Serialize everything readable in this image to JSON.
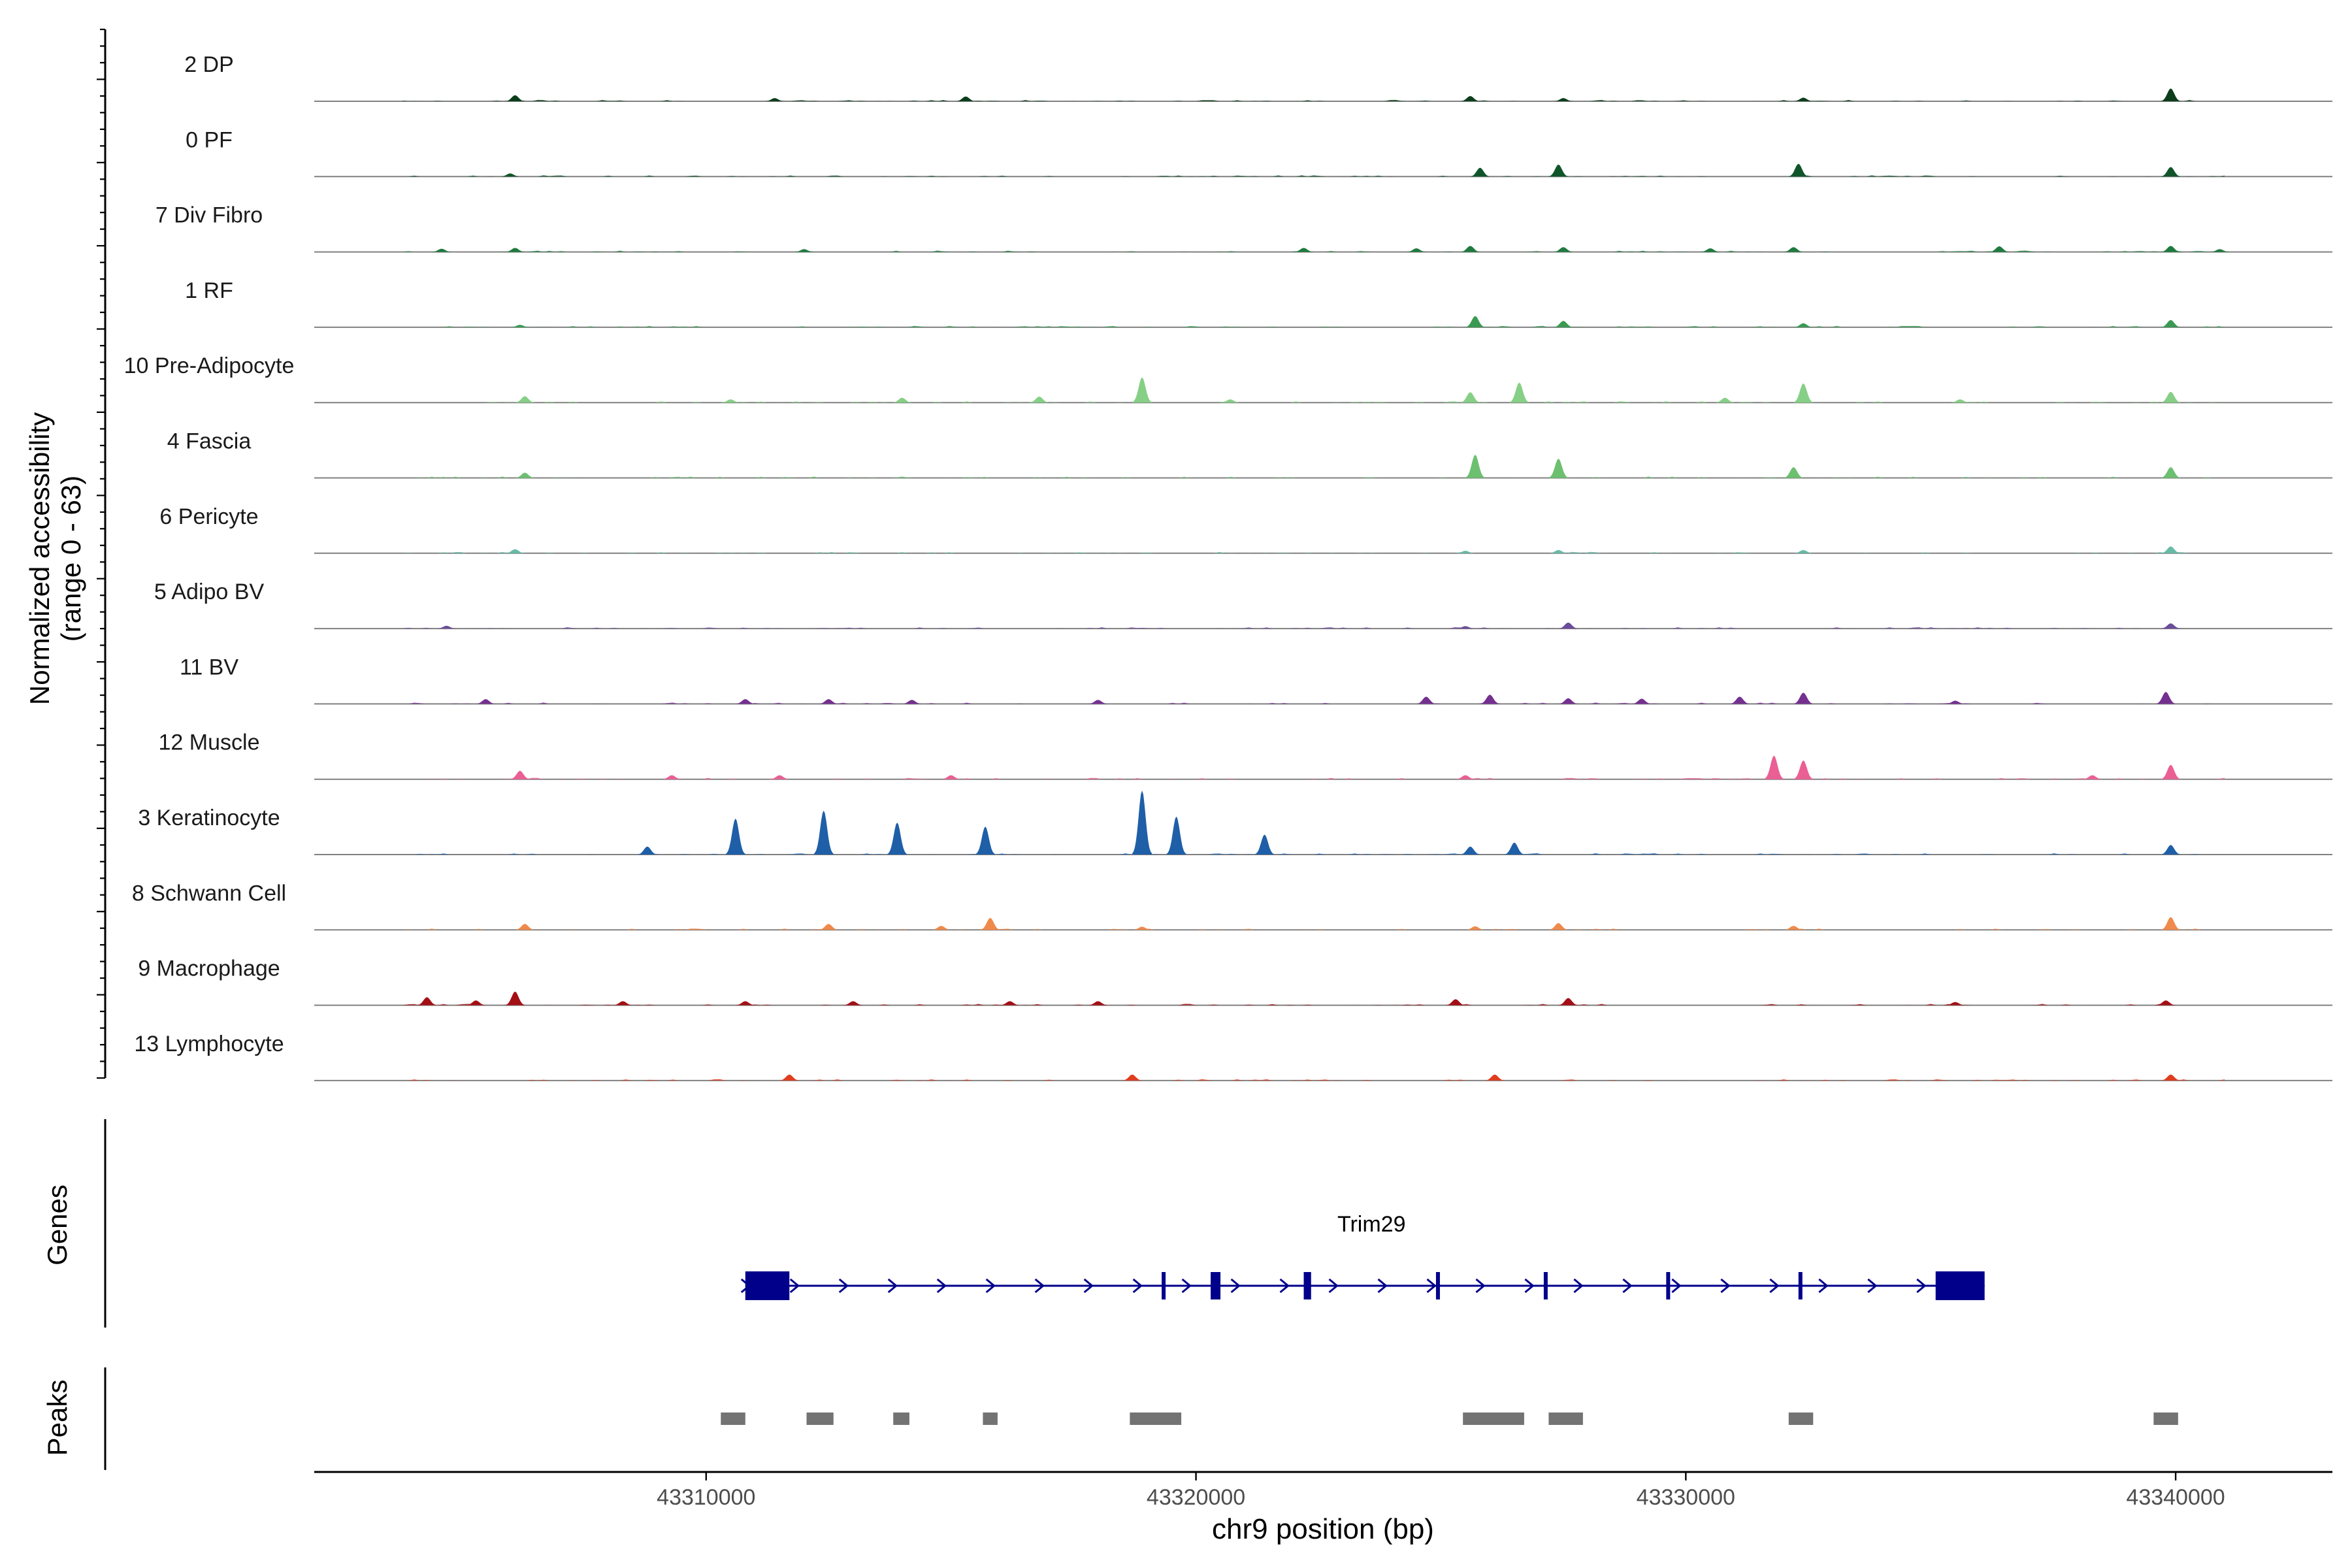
{
  "chart_data": {
    "type": "area",
    "xlabel": "chr9 position (bp)",
    "ylabel": "Normalized accessibility",
    "ylabel_range": "(range 0 - 63)",
    "ylim": [
      0,
      63
    ],
    "xlim": [
      43302000,
      43343200
    ],
    "x_ticks": [
      43310000,
      43320000,
      43330000,
      43340000
    ],
    "x_tick_labels": [
      "43310000",
      "43320000",
      "43330000",
      "43340000"
    ],
    "tracks": [
      {
        "name": "2 DP",
        "color": "#0c3e1c",
        "peaks": [
          [
            43306100,
            1.5
          ],
          [
            43311400,
            0.8
          ],
          [
            43315300,
            1.2
          ],
          [
            43325600,
            1.3
          ],
          [
            43327500,
            0.8
          ],
          [
            43332400,
            0.9
          ],
          [
            43339900,
            3.2
          ]
        ]
      },
      {
        "name": "0 PF",
        "color": "#10552a",
        "peaks": [
          [
            43306000,
            0.8
          ],
          [
            43325800,
            2.2
          ],
          [
            43327400,
            3.0
          ],
          [
            43332300,
            3.2
          ],
          [
            43339900,
            2.4
          ]
        ]
      },
      {
        "name": "7 Div Fibro",
        "color": "#1e7a3e",
        "peaks": [
          [
            43304600,
            0.8
          ],
          [
            43306100,
            1.0
          ],
          [
            43312000,
            0.7
          ],
          [
            43322200,
            1.0
          ],
          [
            43324500,
            0.9
          ],
          [
            43325600,
            1.5
          ],
          [
            43327500,
            1.2
          ],
          [
            43330500,
            0.9
          ],
          [
            43332200,
            1.2
          ],
          [
            43336400,
            1.4
          ],
          [
            43339900,
            1.5
          ],
          [
            43340900,
            0.7
          ]
        ]
      },
      {
        "name": "1 RF",
        "color": "#3a9a52",
        "peaks": [
          [
            43306200,
            0.6
          ],
          [
            43325700,
            2.8
          ],
          [
            43327500,
            1.6
          ],
          [
            43332400,
            1.0
          ],
          [
            43339900,
            1.8
          ]
        ]
      },
      {
        "name": "10 Pre-Adipocyte",
        "color": "#86cf86",
        "peaks": [
          [
            43306300,
            1.6
          ],
          [
            43310500,
            0.8
          ],
          [
            43314000,
            1.2
          ],
          [
            43316800,
            1.5
          ],
          [
            43318900,
            6.3
          ],
          [
            43320700,
            0.8
          ],
          [
            43325600,
            2.6
          ],
          [
            43326600,
            5.0
          ],
          [
            43330800,
            1.2
          ],
          [
            43332400,
            4.8
          ],
          [
            43335600,
            0.8
          ],
          [
            43339900,
            2.7
          ]
        ]
      },
      {
        "name": "4 Fascia",
        "color": "#6cc070",
        "peaks": [
          [
            43306300,
            1.3
          ],
          [
            43325700,
            5.8
          ],
          [
            43327400,
            4.8
          ],
          [
            43332200,
            2.7
          ],
          [
            43339900,
            2.7
          ]
        ]
      },
      {
        "name": "6 Pericyte",
        "color": "#66bba6",
        "peaks": [
          [
            43306100,
            1.0
          ],
          [
            43325500,
            0.6
          ],
          [
            43327400,
            0.8
          ],
          [
            43332400,
            0.8
          ],
          [
            43339900,
            1.7
          ]
        ]
      },
      {
        "name": "5 Adipo BV",
        "color": "#6b4c9a",
        "peaks": [
          [
            43304700,
            0.7
          ],
          [
            43325500,
            0.6
          ],
          [
            43327600,
            1.5
          ],
          [
            43339900,
            1.3
          ]
        ]
      },
      {
        "name": "11 BV",
        "color": "#74308f",
        "peaks": [
          [
            43305500,
            1.2
          ],
          [
            43310800,
            1.2
          ],
          [
            43312500,
            1.2
          ],
          [
            43314200,
            1.0
          ],
          [
            43318000,
            1.0
          ],
          [
            43324700,
            1.8
          ],
          [
            43326000,
            2.3
          ],
          [
            43327600,
            1.4
          ],
          [
            43329100,
            1.3
          ],
          [
            43331100,
            1.8
          ],
          [
            43332400,
            2.8
          ],
          [
            43335500,
            0.8
          ],
          [
            43339800,
            3.0
          ]
        ]
      },
      {
        "name": "12 Muscle",
        "color": "#ea5f94",
        "peaks": [
          [
            43306200,
            2.1
          ],
          [
            43309300,
            1.0
          ],
          [
            43311500,
            1.0
          ],
          [
            43315000,
            1.0
          ],
          [
            43325500,
            1.0
          ],
          [
            43331800,
            5.9
          ],
          [
            43332400,
            4.7
          ],
          [
            43338300,
            1.0
          ],
          [
            43339900,
            3.6
          ]
        ]
      },
      {
        "name": "3 Keratinocyte",
        "color": "#1f5fa8",
        "peaks": [
          [
            43308800,
            2.0
          ],
          [
            43310600,
            9.0
          ],
          [
            43312400,
            11.0
          ],
          [
            43313900,
            8.0
          ],
          [
            43315700,
            7.0
          ],
          [
            43318900,
            16.0
          ],
          [
            43319600,
            9.5
          ],
          [
            43321400,
            5.0
          ],
          [
            43325600,
            2.0
          ],
          [
            43326500,
            3.0
          ],
          [
            43339900,
            2.4
          ]
        ]
      },
      {
        "name": "8 Schwann Cell",
        "color": "#f08a4b",
        "peaks": [
          [
            43306300,
            1.5
          ],
          [
            43312500,
            1.5
          ],
          [
            43314800,
            1.0
          ],
          [
            43315800,
            3.0
          ],
          [
            43318900,
            0.8
          ],
          [
            43325700,
            0.9
          ],
          [
            43327400,
            1.7
          ],
          [
            43332200,
            1.0
          ],
          [
            43339900,
            3.2
          ]
        ]
      },
      {
        "name": "9 Macrophage",
        "color": "#a30f15",
        "peaks": [
          [
            43304300,
            2.0
          ],
          [
            43305300,
            1.2
          ],
          [
            43306100,
            3.4
          ],
          [
            43308300,
            1.0
          ],
          [
            43310800,
            1.0
          ],
          [
            43313000,
            1.0
          ],
          [
            43316200,
            1.0
          ],
          [
            43318000,
            1.0
          ],
          [
            43325300,
            1.5
          ],
          [
            43327600,
            1.8
          ],
          [
            43335500,
            0.8
          ],
          [
            43339800,
            1.2
          ]
        ]
      },
      {
        "name": "13 Lymphocyte",
        "color": "#e03c1e",
        "peaks": [
          [
            43311700,
            1.5
          ],
          [
            43318700,
            1.5
          ],
          [
            43326100,
            1.5
          ],
          [
            43339900,
            1.5
          ]
        ]
      }
    ],
    "genes_panel": {
      "label": "Genes",
      "gene_name": "Trim29",
      "color": "#00008b",
      "strand": "+",
      "start": 43310800,
      "end": 43336100,
      "exons": [
        [
          43310800,
          43311700
        ],
        [
          43319300,
          43319350
        ],
        [
          43320300,
          43320500
        ],
        [
          43322200,
          43322350
        ],
        [
          43324900,
          43324970
        ],
        [
          43327100,
          43327170
        ],
        [
          43329600,
          43329680
        ],
        [
          43332300,
          43332350
        ],
        [
          43335100,
          43336100
        ]
      ]
    },
    "peaks_panel": {
      "label": "Peaks",
      "color": "#737373",
      "regions": [
        [
          43310300,
          43310800
        ],
        [
          43312050,
          43312600
        ],
        [
          43313820,
          43314150
        ],
        [
          43315650,
          43315950
        ],
        [
          43318650,
          43319700
        ],
        [
          43325450,
          43326700
        ],
        [
          43327200,
          43327900
        ],
        [
          43332100,
          43332600
        ],
        [
          43339550,
          43340050
        ]
      ]
    }
  }
}
